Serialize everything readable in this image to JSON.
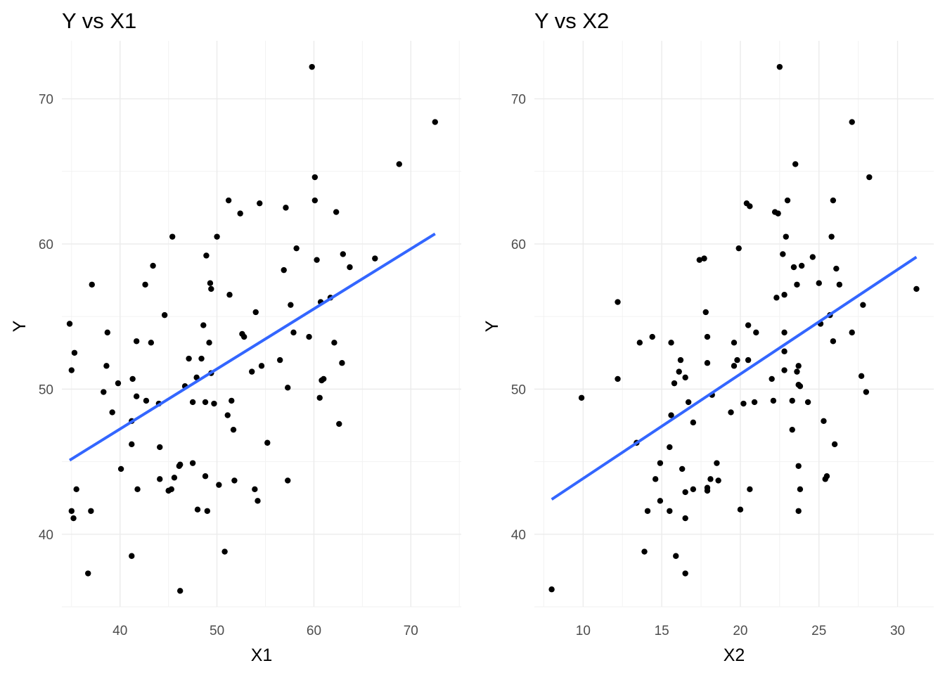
{
  "chart_data": [
    {
      "type": "scatter",
      "title": "Y vs X1",
      "xlabel": "X1",
      "ylabel": "Y",
      "xticks": [
        40,
        50,
        60,
        70
      ],
      "yticks": [
        40,
        50,
        60,
        70
      ],
      "xlim": [
        34.0,
        75.2
      ],
      "ylim": [
        35.0,
        74.0
      ],
      "grid": true,
      "point_color": "#000000",
      "fit_color": "#3366FF",
      "fit_line": {
        "x": [
          34.8,
          72.5
        ],
        "y": [
          45.1,
          60.7
        ]
      },
      "points": [
        [
          34.8,
          54.5
        ],
        [
          35.0,
          51.3
        ],
        [
          35.3,
          52.5
        ],
        [
          35.0,
          41.6
        ],
        [
          35.2,
          41.1
        ],
        [
          35.5,
          43.1
        ],
        [
          36.7,
          37.3
        ],
        [
          37.0,
          41.6
        ],
        [
          37.1,
          57.2
        ],
        [
          38.3,
          49.8
        ],
        [
          38.6,
          51.6
        ],
        [
          38.7,
          53.9
        ],
        [
          39.2,
          48.4
        ],
        [
          39.8,
          50.4
        ],
        [
          40.1,
          44.5
        ],
        [
          41.2,
          47.8
        ],
        [
          41.2,
          46.2
        ],
        [
          41.3,
          50.7
        ],
        [
          41.2,
          38.5
        ],
        [
          41.7,
          49.5
        ],
        [
          41.7,
          53.3
        ],
        [
          41.8,
          43.1
        ],
        [
          42.6,
          57.2
        ],
        [
          42.7,
          49.2
        ],
        [
          43.2,
          53.2
        ],
        [
          43.4,
          58.5
        ],
        [
          44.0,
          49.0
        ],
        [
          44.1,
          46.0
        ],
        [
          44.1,
          43.8
        ],
        [
          44.6,
          55.1
        ],
        [
          45.0,
          43.0
        ],
        [
          45.3,
          43.1
        ],
        [
          45.4,
          60.5
        ],
        [
          45.6,
          43.9
        ],
        [
          46.1,
          44.7
        ],
        [
          46.2,
          44.8
        ],
        [
          46.2,
          36.1
        ],
        [
          46.7,
          50.2
        ],
        [
          47.1,
          52.1
        ],
        [
          47.5,
          49.1
        ],
        [
          47.5,
          44.9
        ],
        [
          47.9,
          50.8
        ],
        [
          48.0,
          41.7
        ],
        [
          48.4,
          52.1
        ],
        [
          48.6,
          54.4
        ],
        [
          48.8,
          49.1
        ],
        [
          48.8,
          44.0
        ],
        [
          48.9,
          59.2
        ],
        [
          49.0,
          41.6
        ],
        [
          49.2,
          53.2
        ],
        [
          49.3,
          57.3
        ],
        [
          49.4,
          56.9
        ],
        [
          49.4,
          51.1
        ],
        [
          49.7,
          49.0
        ],
        [
          50.0,
          60.5
        ],
        [
          50.2,
          43.4
        ],
        [
          50.8,
          38.8
        ],
        [
          51.1,
          48.2
        ],
        [
          51.2,
          63.0
        ],
        [
          51.3,
          56.5
        ],
        [
          51.5,
          49.2
        ],
        [
          51.7,
          47.2
        ],
        [
          51.8,
          43.7
        ],
        [
          52.4,
          62.1
        ],
        [
          52.6,
          53.8
        ],
        [
          52.8,
          53.6
        ],
        [
          53.6,
          51.2
        ],
        [
          53.9,
          43.1
        ],
        [
          54.0,
          55.3
        ],
        [
          54.2,
          42.3
        ],
        [
          54.4,
          62.8
        ],
        [
          54.6,
          51.6
        ],
        [
          55.2,
          46.3
        ],
        [
          56.5,
          52.0
        ],
        [
          56.9,
          58.2
        ],
        [
          57.1,
          62.5
        ],
        [
          57.3,
          50.1
        ],
        [
          57.3,
          43.7
        ],
        [
          57.6,
          55.8
        ],
        [
          57.9,
          53.9
        ],
        [
          58.2,
          59.7
        ],
        [
          59.5,
          53.6
        ],
        [
          59.8,
          72.2
        ],
        [
          60.1,
          64.6
        ],
        [
          60.1,
          63.0
        ],
        [
          60.3,
          58.9
        ],
        [
          60.6,
          49.4
        ],
        [
          60.7,
          56.0
        ],
        [
          60.8,
          50.6
        ],
        [
          61.0,
          50.7
        ],
        [
          61.7,
          56.3
        ],
        [
          62.1,
          53.2
        ],
        [
          62.3,
          62.2
        ],
        [
          62.6,
          47.6
        ],
        [
          62.9,
          51.8
        ],
        [
          63.0,
          59.3
        ],
        [
          63.7,
          58.4
        ],
        [
          66.3,
          59.0
        ],
        [
          68.8,
          65.5
        ],
        [
          72.5,
          68.4
        ]
      ]
    },
    {
      "type": "scatter",
      "title": "Y vs X2",
      "xlabel": "X2",
      "ylabel": "Y",
      "xticks": [
        10,
        15,
        20,
        25,
        30
      ],
      "yticks": [
        40,
        50,
        60,
        70
      ],
      "xlim": [
        6.9,
        32.3
      ],
      "ylim": [
        35.0,
        74.0
      ],
      "grid": true,
      "point_color": "#000000",
      "fit_color": "#3366FF",
      "fit_line": {
        "x": [
          8.0,
          31.2
        ],
        "y": [
          42.4,
          59.1
        ]
      },
      "points": [
        [
          8.0,
          36.2
        ],
        [
          9.9,
          49.4
        ],
        [
          12.2,
          56.0
        ],
        [
          12.2,
          50.7
        ],
        [
          13.4,
          46.3
        ],
        [
          13.6,
          53.2
        ],
        [
          13.9,
          38.8
        ],
        [
          14.1,
          41.6
        ],
        [
          14.4,
          53.6
        ],
        [
          14.6,
          43.8
        ],
        [
          14.9,
          44.9
        ],
        [
          14.9,
          42.3
        ],
        [
          15.5,
          41.6
        ],
        [
          15.5,
          46.0
        ],
        [
          15.6,
          48.2
        ],
        [
          15.6,
          53.2
        ],
        [
          15.8,
          50.4
        ],
        [
          15.9,
          38.5
        ],
        [
          16.1,
          51.2
        ],
        [
          16.2,
          52.0
        ],
        [
          16.3,
          44.5
        ],
        [
          16.5,
          41.1
        ],
        [
          16.5,
          37.3
        ],
        [
          16.5,
          50.8
        ],
        [
          16.5,
          42.9
        ],
        [
          16.7,
          49.1
        ],
        [
          17.0,
          47.7
        ],
        [
          17.0,
          43.1
        ],
        [
          17.4,
          58.9
        ],
        [
          17.7,
          59.0
        ],
        [
          17.8,
          55.3
        ],
        [
          17.9,
          51.8
        ],
        [
          17.9,
          53.6
        ],
        [
          17.9,
          43.2
        ],
        [
          17.9,
          43.0
        ],
        [
          18.1,
          43.8
        ],
        [
          18.2,
          49.6
        ],
        [
          18.5,
          44.9
        ],
        [
          18.6,
          43.7
        ],
        [
          19.4,
          48.4
        ],
        [
          19.6,
          51.6
        ],
        [
          19.6,
          53.2
        ],
        [
          19.8,
          52.0
        ],
        [
          19.9,
          59.7
        ],
        [
          20.0,
          41.7
        ],
        [
          20.2,
          49.0
        ],
        [
          20.4,
          62.8
        ],
        [
          20.5,
          54.4
        ],
        [
          20.5,
          52.0
        ],
        [
          20.6,
          43.1
        ],
        [
          20.6,
          62.6
        ],
        [
          20.9,
          49.1
        ],
        [
          21.0,
          53.9
        ],
        [
          22.0,
          50.7
        ],
        [
          22.1,
          49.2
        ],
        [
          22.2,
          62.2
        ],
        [
          22.3,
          56.3
        ],
        [
          22.4,
          62.1
        ],
        [
          22.5,
          72.2
        ],
        [
          22.7,
          59.3
        ],
        [
          22.8,
          53.9
        ],
        [
          22.8,
          52.6
        ],
        [
          22.8,
          51.3
        ],
        [
          22.8,
          56.5
        ],
        [
          22.9,
          60.5
        ],
        [
          23.0,
          63.0
        ],
        [
          23.3,
          49.2
        ],
        [
          23.3,
          47.2
        ],
        [
          23.4,
          58.4
        ],
        [
          23.5,
          65.5
        ],
        [
          23.6,
          51.2
        ],
        [
          23.6,
          57.2
        ],
        [
          23.7,
          41.6
        ],
        [
          23.7,
          51.6
        ],
        [
          23.7,
          50.3
        ],
        [
          23.7,
          44.7
        ],
        [
          23.8,
          50.2
        ],
        [
          23.8,
          43.1
        ],
        [
          23.9,
          58.5
        ],
        [
          24.3,
          49.1
        ],
        [
          24.6,
          59.1
        ],
        [
          25.0,
          57.3
        ],
        [
          25.1,
          54.5
        ],
        [
          25.3,
          47.8
        ],
        [
          25.4,
          43.8
        ],
        [
          25.5,
          44.0
        ],
        [
          25.7,
          55.1
        ],
        [
          25.8,
          60.5
        ],
        [
          25.9,
          63.0
        ],
        [
          25.9,
          53.3
        ],
        [
          26.0,
          46.2
        ],
        [
          26.1,
          58.3
        ],
        [
          26.3,
          57.2
        ],
        [
          27.1,
          68.4
        ],
        [
          27.1,
          53.9
        ],
        [
          27.7,
          50.9
        ],
        [
          27.8,
          55.8
        ],
        [
          28.0,
          49.8
        ],
        [
          28.2,
          64.6
        ],
        [
          31.2,
          56.9
        ]
      ]
    }
  ]
}
